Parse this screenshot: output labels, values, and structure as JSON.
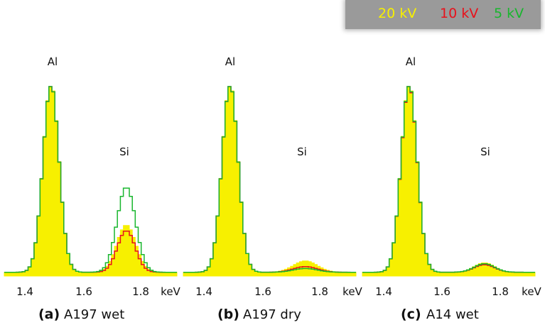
{
  "legend": [
    {
      "label": "20 kV",
      "color": "#f7f000"
    },
    {
      "label": "10 kV",
      "color": "#e8111b"
    },
    {
      "label": "5 kV",
      "color": "#19b62e"
    }
  ],
  "panels": [
    {
      "id": "(a)",
      "name": "A197 wet"
    },
    {
      "id": "(b)",
      "name": "A197 dry"
    },
    {
      "id": "(c)",
      "name": "A14 wet"
    }
  ],
  "chart_data": [
    {
      "type": "area",
      "title": "(a) A197 wet",
      "xlabel": "keV",
      "ylabel": "",
      "xlim": [
        1.33,
        1.91
      ],
      "ylim": [
        0,
        1
      ],
      "xticks": [
        "1.4",
        "1.6",
        "1.8",
        "keV"
      ],
      "peak_labels": [
        "Al",
        "Si"
      ],
      "grid": false,
      "series": [
        {
          "name": "20 kV",
          "peaks": [
            {
              "x": 1.487,
              "height": 1.0,
              "width": 0.027
            },
            {
              "x": 1.74,
              "height": 0.25,
              "width": 0.032
            }
          ],
          "baseline": 0.02
        },
        {
          "name": "10 kV",
          "peaks": [
            {
              "x": 1.487,
              "height": 0.995,
              "width": 0.027
            },
            {
              "x": 1.74,
              "height": 0.22,
              "width": 0.03
            }
          ],
          "baseline": 0.02
        },
        {
          "name": "5 kV",
          "peaks": [
            {
              "x": 1.487,
              "height": 0.995,
              "width": 0.027
            },
            {
              "x": 1.74,
              "height": 0.45,
              "width": 0.031
            }
          ],
          "baseline": 0.02
        }
      ]
    },
    {
      "type": "area",
      "title": "(b) A197 dry",
      "xlabel": "keV",
      "ylabel": "",
      "xlim": [
        1.33,
        1.91
      ],
      "ylim": [
        0,
        1
      ],
      "xticks": [
        "1.4",
        "1.6",
        "1.8",
        "keV"
      ],
      "peak_labels": [
        "Al",
        "Si"
      ],
      "grid": false,
      "series": [
        {
          "name": "20 kV",
          "peaks": [
            {
              "x": 1.487,
              "height": 1.0,
              "width": 0.027
            },
            {
              "x": 1.74,
              "height": 0.06,
              "width": 0.04
            }
          ],
          "baseline": 0.02
        },
        {
          "name": "10 kV",
          "peaks": [
            {
              "x": 1.487,
              "height": 0.995,
              "width": 0.027
            },
            {
              "x": 1.74,
              "height": 0.03,
              "width": 0.04
            }
          ],
          "baseline": 0.02
        },
        {
          "name": "5 kV",
          "peaks": [
            {
              "x": 1.487,
              "height": 0.995,
              "width": 0.027
            },
            {
              "x": 1.74,
              "height": 0.02,
              "width": 0.04
            }
          ],
          "baseline": 0.02
        }
      ]
    },
    {
      "type": "area",
      "title": "(c) A14 wet",
      "xlabel": "keV",
      "ylabel": "",
      "xlim": [
        1.33,
        1.91
      ],
      "ylim": [
        0,
        1
      ],
      "xticks": [
        "1.4",
        "1.6",
        "1.8",
        "keV"
      ],
      "peak_labels": [
        "Al",
        "Si"
      ],
      "grid": false,
      "series": [
        {
          "name": "20 kV",
          "peaks": [
            {
              "x": 1.487,
              "height": 1.0,
              "width": 0.027
            },
            {
              "x": 1.74,
              "height": 0.05,
              "width": 0.034
            }
          ],
          "baseline": 0.02
        },
        {
          "name": "10 kV",
          "peaks": [
            {
              "x": 1.487,
              "height": 0.99,
              "width": 0.027
            },
            {
              "x": 1.74,
              "height": 0.04,
              "width": 0.034
            }
          ],
          "baseline": 0.02
        },
        {
          "name": "5 kV",
          "peaks": [
            {
              "x": 1.487,
              "height": 0.995,
              "width": 0.027
            },
            {
              "x": 1.74,
              "height": 0.045,
              "width": 0.034
            }
          ],
          "baseline": 0.02
        }
      ]
    }
  ]
}
